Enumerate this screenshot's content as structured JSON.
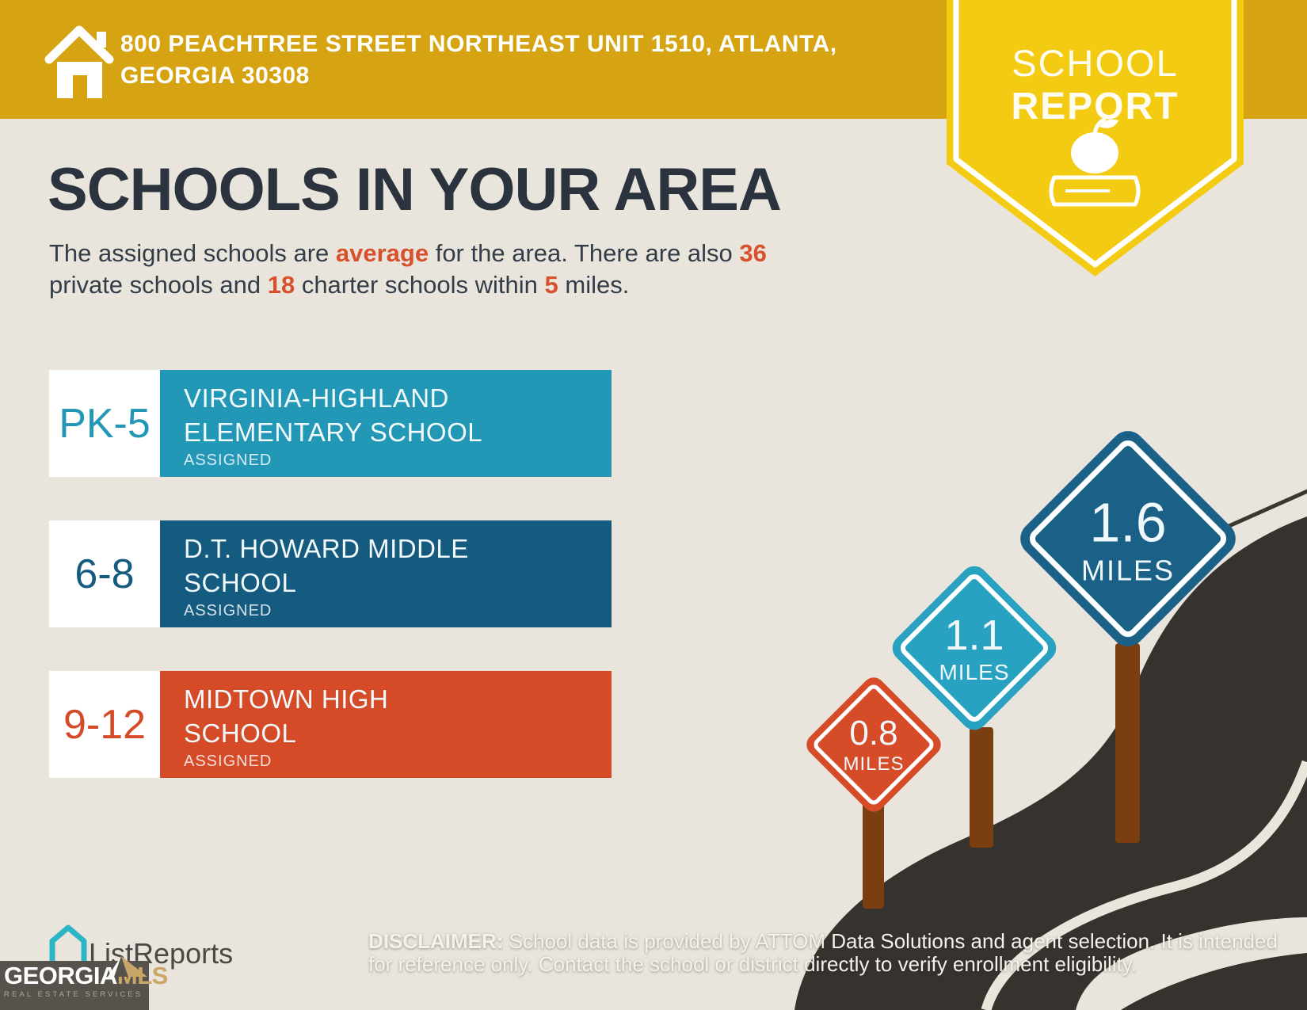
{
  "page": {
    "background": "#E9E5DC"
  },
  "header": {
    "bar_color": "#D6A412",
    "address_line1": "800 PEACHTREE STREET NORTHEAST UNIT 1510, ATLANTA,",
    "address_line2": "GEORGIA 30308"
  },
  "badge": {
    "color": "#F3CB12",
    "title_line1": "SCHOOL",
    "title_line2": "REPORT"
  },
  "main": {
    "title": "SCHOOLS IN YOUR AREA",
    "text_color": "#333D47",
    "highlight_color": "#D8512D",
    "intro_segments": [
      {
        "text": "The assigned schools are "
      },
      {
        "text": "average",
        "highlight": true
      },
      {
        "text": " for the area. There are also "
      },
      {
        "text": "36",
        "highlight": true
      },
      {
        "br": true
      },
      {
        "text": "private schools and "
      },
      {
        "text": "18",
        "highlight": true
      },
      {
        "text": " charter schools within "
      },
      {
        "text": "5",
        "highlight": true
      },
      {
        "text": " miles."
      }
    ]
  },
  "schools": [
    {
      "grade_range": "PK-5",
      "name_line1": "VIRGINIA-HIGHLAND",
      "name_line2": "ELEMENTARY SCHOOL",
      "status": "ASSIGNED",
      "color": "#2297B6"
    },
    {
      "grade_range": "6-8",
      "name_line1": "D.T. HOWARD MIDDLE",
      "name_line2": "SCHOOL",
      "status": "ASSIGNED",
      "color": "#155A7F"
    },
    {
      "grade_range": "9-12",
      "name_line1": "MIDTOWN HIGH",
      "name_line2": "SCHOOL",
      "status": "ASSIGNED",
      "color": "#D54B28"
    }
  ],
  "signs": [
    {
      "distance": "0.8",
      "unit": "MILES",
      "color": "#D64B28"
    },
    {
      "distance": "1.1",
      "unit": "MILES",
      "color": "#29A2C2"
    },
    {
      "distance": "1.6",
      "unit": "MILES",
      "color": "#1B6187"
    }
  ],
  "road": {
    "asphalt_color": "#36332E",
    "stripe_color": "#EAE6DC",
    "post_color": "#7B3E10"
  },
  "footer": {
    "brand": "ListReports",
    "brand_accent": "#2CB5C4",
    "disclaimer_label": "DISCLAIMER:",
    "disclaimer_line1": " School data is provided by ATTOM Data Solutions and agent selection. It is intended",
    "disclaimer_line2": "for reference only. Contact the school or district directly to verify enrollment eligibility.",
    "mls": {
      "name_part1": "GEORGIA",
      "name_part2": "MLS",
      "tagline": "REAL ESTATE SERVICES",
      "box_color": "#57524C",
      "accent_color": "#C9A668"
    }
  }
}
